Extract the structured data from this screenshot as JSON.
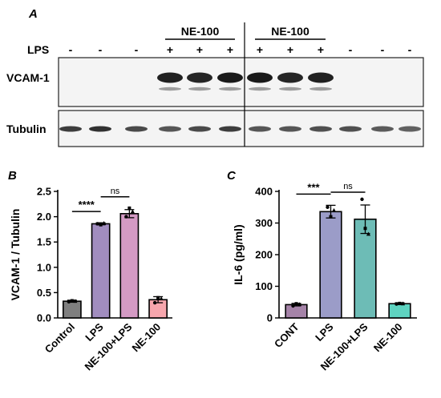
{
  "figure": {
    "panels": {
      "a": "A",
      "b": "B",
      "c": "C"
    }
  },
  "blot": {
    "group_labels": [
      "NE-100",
      "NE-100"
    ],
    "row_label_lps": "LPS",
    "lanes_lps": [
      "-",
      "-",
      "-",
      "+",
      "+",
      "+",
      "+",
      "+",
      "+",
      "-",
      "-",
      "-"
    ],
    "lane_group_span": [
      [
        3,
        5
      ],
      [
        6,
        8
      ]
    ],
    "bands": [
      {
        "name": "VCAM-1",
        "intensity": [
          0,
          0,
          0,
          0.92,
          0.9,
          0.95,
          0.95,
          0.9,
          0.92,
          0,
          0,
          0
        ]
      },
      {
        "name": "Tubulin",
        "intensity": [
          0.8,
          0.85,
          0.75,
          0.7,
          0.75,
          0.8,
          0.7,
          0.7,
          0.72,
          0.72,
          0.68,
          0.65
        ]
      }
    ]
  },
  "chart_data": [
    {
      "type": "bar",
      "panel": "B",
      "categories": [
        "Control",
        "LPS",
        "NE-100+LPS",
        "NE-100"
      ],
      "values": [
        0.33,
        1.86,
        2.06,
        0.36
      ],
      "errors": [
        0.02,
        0.02,
        0.08,
        0.06
      ],
      "points": [
        [
          0.32,
          0.34,
          0.33
        ],
        [
          1.86,
          1.84,
          1.87
        ],
        [
          2.0,
          2.17,
          2.1
        ],
        [
          0.3,
          0.4,
          0.38
        ]
      ],
      "colors": [
        "#7f7f7f",
        "#a18dbf",
        "#d49ac4",
        "#f7a6ad"
      ],
      "ylabel": "VCAM-1 / Tubulin",
      "ylim": [
        0,
        2.5
      ],
      "yticks": [
        0.0,
        0.5,
        1.0,
        1.5,
        2.0,
        2.5
      ],
      "ytick_labels": [
        "0.0",
        "0.5",
        "1.0",
        "1.5",
        "2.0",
        "2.5"
      ],
      "annotations": [
        {
          "from": 0,
          "to": 1,
          "label": "****"
        },
        {
          "from": 1,
          "to": 2,
          "label": "ns"
        }
      ]
    },
    {
      "type": "bar",
      "panel": "C",
      "categories": [
        "CONT",
        "LPS",
        "NE-100+LPS",
        "NE-100"
      ],
      "values": [
        42,
        336,
        312,
        45
      ],
      "errors": [
        4,
        20,
        45,
        3
      ],
      "points": [
        [
          38,
          45,
          43
        ],
        [
          350,
          320,
          340
        ],
        [
          375,
          283,
          265
        ],
        [
          44,
          46,
          45
        ]
      ],
      "colors": [
        "#a583a8",
        "#9b9cc8",
        "#6dbcb6",
        "#5ed3c0"
      ],
      "ylabel": "IL-6 (pg/ml)",
      "ylim": [
        0,
        400
      ],
      "yticks": [
        0,
        100,
        200,
        300,
        400
      ],
      "ytick_labels": [
        "0",
        "100",
        "200",
        "300",
        "400"
      ],
      "annotations": [
        {
          "from": 0,
          "to": 1,
          "label": "***"
        },
        {
          "from": 1,
          "to": 2,
          "label": "ns"
        }
      ]
    }
  ]
}
